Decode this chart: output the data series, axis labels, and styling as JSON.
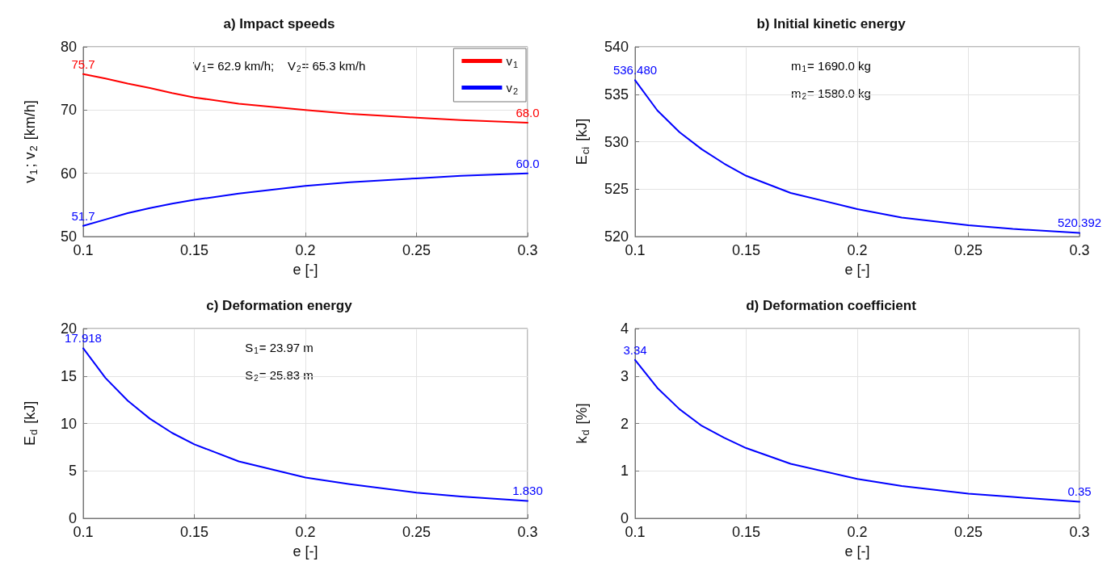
{
  "chart_data": [
    {
      "type": "line",
      "title": "a) Impact speeds",
      "xlabel": "e [-]",
      "ylabel": "v$_{1}$; v$_{2}$ [km/h]",
      "x": [
        0.1,
        0.11,
        0.12,
        0.13,
        0.14,
        0.15,
        0.17,
        0.2,
        0.22,
        0.25,
        0.27,
        0.3
      ],
      "xlim": [
        0.1,
        0.3
      ],
      "xticks": [
        0.1,
        0.15,
        0.2,
        0.25,
        0.3
      ],
      "ylim": [
        50,
        80
      ],
      "yticks": [
        50,
        60,
        70,
        80
      ],
      "grid": true,
      "legend": "top right",
      "annotations": [
        "V$_{1}$= 62.9 km/h;    V$_{2}$= 65.3 km/h"
      ],
      "series": [
        {
          "name": "v$_{1}$",
          "color": "#ff0000",
          "values": [
            75.7,
            75.0,
            74.2,
            73.5,
            72.7,
            72.0,
            71.0,
            70.0,
            69.4,
            68.8,
            68.4,
            68.0
          ],
          "value_labels": [
            "75.7",
            null,
            null,
            null,
            null,
            null,
            null,
            null,
            null,
            null,
            null,
            "68.0"
          ]
        },
        {
          "name": "v$_{2}$",
          "color": "#0000ff",
          "values": [
            51.7,
            52.7,
            53.7,
            54.5,
            55.2,
            55.8,
            56.8,
            58.0,
            58.6,
            59.2,
            59.6,
            60.0
          ],
          "value_labels": [
            "51.7",
            null,
            null,
            null,
            null,
            null,
            null,
            null,
            null,
            null,
            null,
            "60.0"
          ]
        }
      ]
    },
    {
      "type": "line",
      "title": "b) Initial kinetic energy",
      "xlabel": "e [-]",
      "ylabel": "E$_{ci}$ [kJ]",
      "x": [
        0.1,
        0.11,
        0.12,
        0.13,
        0.14,
        0.15,
        0.17,
        0.2,
        0.22,
        0.25,
        0.27,
        0.3
      ],
      "xlim": [
        0.1,
        0.3
      ],
      "xticks": [
        0.1,
        0.15,
        0.2,
        0.25,
        0.3
      ],
      "ylim": [
        520,
        540
      ],
      "yticks": [
        520,
        525,
        530,
        535,
        540
      ],
      "grid": true,
      "annotations": [
        "m$_{1}$= 1690.0 kg",
        "m$_{2}$= 1580.0 kg"
      ],
      "series": [
        {
          "color": "#0000ff",
          "values": [
            536.48,
            533.3,
            531.0,
            529.2,
            527.7,
            526.4,
            524.6,
            522.9,
            522.0,
            521.2,
            520.8,
            520.392
          ],
          "value_labels": [
            "536.480",
            null,
            null,
            null,
            null,
            null,
            null,
            null,
            null,
            null,
            null,
            "520.392"
          ]
        }
      ]
    },
    {
      "type": "line",
      "title": "c) Deformation energy",
      "xlabel": "e [-]",
      "ylabel": "E$_{d}$ [kJ]",
      "x": [
        0.1,
        0.11,
        0.12,
        0.13,
        0.14,
        0.15,
        0.17,
        0.2,
        0.22,
        0.25,
        0.27,
        0.3
      ],
      "xlim": [
        0.1,
        0.3
      ],
      "xticks": [
        0.1,
        0.15,
        0.2,
        0.25,
        0.3
      ],
      "ylim": [
        0,
        20
      ],
      "yticks": [
        0,
        5,
        10,
        15,
        20
      ],
      "grid": true,
      "annotations": [
        "S$_{1}$= 23.97 m",
        "S$_{2}$= 25.83 m"
      ],
      "series": [
        {
          "color": "#0000ff",
          "values": [
            17.918,
            14.8,
            12.4,
            10.5,
            9.0,
            7.8,
            6.0,
            4.3,
            3.6,
            2.7,
            2.3,
            1.83
          ],
          "value_labels": [
            "17.918",
            null,
            null,
            null,
            null,
            null,
            null,
            null,
            null,
            null,
            null,
            "1.830"
          ]
        }
      ]
    },
    {
      "type": "line",
      "title": "d) Deformation coefficient",
      "xlabel": "e [-]",
      "ylabel": "k$_{d}$ [%]",
      "x": [
        0.1,
        0.11,
        0.12,
        0.13,
        0.14,
        0.15,
        0.17,
        0.2,
        0.22,
        0.25,
        0.27,
        0.3
      ],
      "xlim": [
        0.1,
        0.3
      ],
      "xticks": [
        0.1,
        0.15,
        0.2,
        0.25,
        0.3
      ],
      "ylim": [
        0,
        4
      ],
      "yticks": [
        0,
        1,
        2,
        3,
        4
      ],
      "grid": true,
      "series": [
        {
          "color": "#0000ff",
          "values": [
            3.34,
            2.75,
            2.3,
            1.95,
            1.7,
            1.48,
            1.15,
            0.83,
            0.68,
            0.52,
            0.45,
            0.35
          ],
          "value_labels": [
            "3.34",
            null,
            null,
            null,
            null,
            null,
            null,
            null,
            null,
            null,
            null,
            "0.35"
          ]
        }
      ]
    }
  ]
}
